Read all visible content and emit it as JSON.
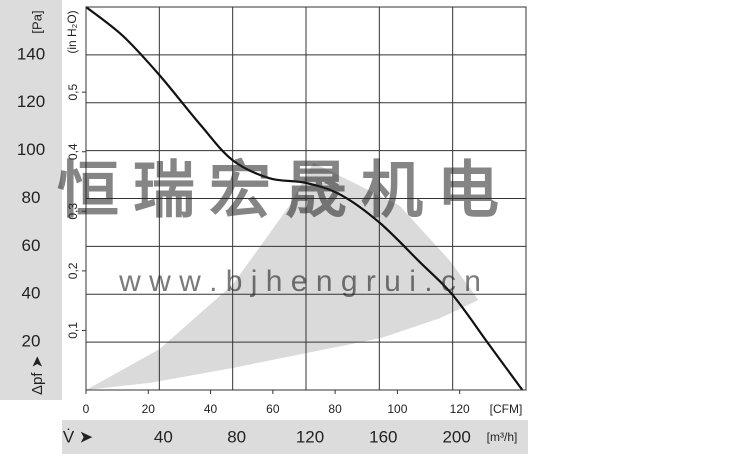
{
  "chart_data": {
    "type": "line",
    "y_unit": "[Pa]",
    "y_symbol": "Δpf ➤",
    "y2_unit": "(in H₂O)",
    "x_unit": "[m³/h]",
    "x_symbol": "V̇ ➤",
    "x2_unit": "[CFM]",
    "watermark": "恒瑞宏晟机电",
    "watermark_url": "w w w . b j h e n g r u i . c n",
    "xlim": [
      0,
      240
    ],
    "xticks": [
      40,
      80,
      120,
      160,
      200
    ],
    "x2lim": [
      0,
      141.3
    ],
    "x2ticks": [
      0,
      20,
      40,
      60,
      80,
      100,
      120
    ],
    "ylim": [
      0,
      160
    ],
    "yticks": [
      20,
      40,
      60,
      80,
      100,
      120,
      140
    ],
    "y2lim": [
      0,
      0.643
    ],
    "y2ticks": [
      {
        "value": 0.1,
        "label": "0,1"
      },
      {
        "value": 0.2,
        "label": "0,2"
      },
      {
        "value": 0.3,
        "label": "0,3"
      },
      {
        "value": 0.4,
        "label": "0,4"
      },
      {
        "value": 0.5,
        "label": "0,5"
      }
    ],
    "grid": true,
    "series": [
      {
        "color": "#111111",
        "x": [
          0,
          20,
          40,
          62.5,
          80,
          100,
          120,
          139,
          160,
          182,
          200,
          220,
          238
        ],
        "values": [
          160,
          148,
          131.6,
          110.7,
          96,
          88.5,
          86.5,
          81.5,
          70,
          53.5,
          39.7,
          18.8,
          0
        ]
      }
    ],
    "operating_range": {
      "color": "#d4d4d4",
      "x": [
        0,
        40,
        80,
        111,
        124,
        171,
        198.5,
        214,
        193,
        161,
        80,
        35,
        0
      ],
      "values": [
        0,
        17,
        44,
        77,
        95,
        77,
        54,
        37.6,
        30,
        21.7,
        9.2,
        3,
        0
      ]
    }
  }
}
